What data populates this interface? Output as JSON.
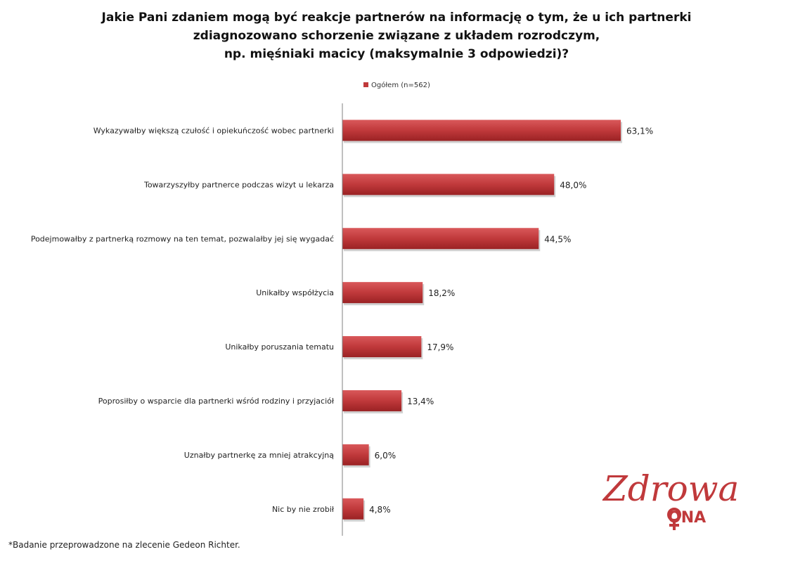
{
  "title_lines": [
    "Jakie Pani zdaniem mogą być reakcje partnerów na informację o tym, że u ich partnerki",
    "zdiagnozowano schorzenie związane z układem rozrodczym,",
    "np. mięśniaki macicy (maksymalnie 3 odpowiedzi)?"
  ],
  "footnote": "*Badanie przeprowadzone na zlecenie Gedeon Richter.",
  "logo": {
    "text_top": "Zdrowa",
    "text_bottom": "ONA",
    "color": "#c0393b"
  },
  "colors": {
    "bar": "#c0393b",
    "bar_dark": "#9a2224",
    "bar_light": "#d9585a",
    "axis": "#808080"
  },
  "chart_data": {
    "type": "bar",
    "orientation": "horizontal",
    "title": "Jakie Pani zdaniem mogą być reakcje partnerów na informację o tym, że u ich partnerki zdiagnozowano schorzenie związane z układem rozrodczym, np. mięśniaki macicy (maksymalnie 3 odpowiedzi)?",
    "legend_position": "top",
    "xlim": [
      0,
      70
    ],
    "grid": false,
    "series": [
      {
        "name": "Ogółem (n=562)",
        "values": [
          63.1,
          48.0,
          44.5,
          18.2,
          17.9,
          13.4,
          6.0,
          4.8
        ]
      }
    ],
    "categories": [
      "Wykazywałby większą czułość i opiekuńczość wobec partnerki",
      "Towarzyszyłby partnerce podczas wizyt u lekarza",
      "Podejmowałby z partnerką rozmowy na ten temat, pozwalałby jej się wygadać",
      "Unikałby współżycia",
      "Unikałby poruszania tematu",
      "Poprosiłby o wsparcie dla partnerki wśród rodziny i przyjaciół",
      "Uznałby partnerkę za mniej atrakcyjną",
      "Nic by nie zrobił"
    ],
    "value_labels": [
      "63,1%",
      "48,0%",
      "44,5%",
      "18,2%",
      "17,9%",
      "13,4%",
      "6,0%",
      "4,8%"
    ]
  }
}
